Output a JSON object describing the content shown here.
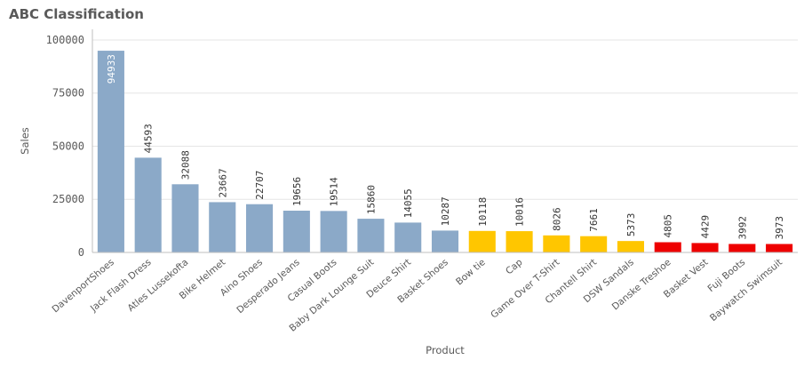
{
  "chart_data": {
    "type": "bar",
    "title": "ABC Classification",
    "xlabel": "Product",
    "ylabel": "Sales",
    "ylim": [
      0,
      105000
    ],
    "yticks": [
      0,
      25000,
      50000,
      75000,
      100000
    ],
    "grid": true,
    "categories": [
      "DavenportShoes",
      "Jack Flash Dress",
      "Atles Lussekofta",
      "Bike Helmet",
      "Aino Shoes",
      "Desperado Jeans",
      "Casual Boots",
      "Baby Dark Lounge Suit",
      "Deuce Shirt",
      "Basket Shoes",
      "Bow tie",
      "Cap",
      "Game Over T-Shirt",
      "Chantell Shirt",
      "DSW Sandals",
      "Danske Treshoe",
      "Basket Vest",
      "Fuji Boots",
      "Baywatch Swimsuit"
    ],
    "values": [
      94933,
      44593,
      32088,
      23667,
      22707,
      19656,
      19514,
      15860,
      14055,
      10287,
      10118,
      10016,
      8026,
      7661,
      5373,
      4805,
      4429,
      3992,
      3973
    ],
    "class_colors": [
      "#8ba9c8",
      "#8ba9c8",
      "#8ba9c8",
      "#8ba9c8",
      "#8ba9c8",
      "#8ba9c8",
      "#8ba9c8",
      "#8ba9c8",
      "#8ba9c8",
      "#8ba9c8",
      "#ffc600",
      "#ffc600",
      "#ffc600",
      "#ffc600",
      "#ffc600",
      "#ee0000",
      "#ee0000",
      "#ee0000",
      "#ee0000"
    ]
  }
}
